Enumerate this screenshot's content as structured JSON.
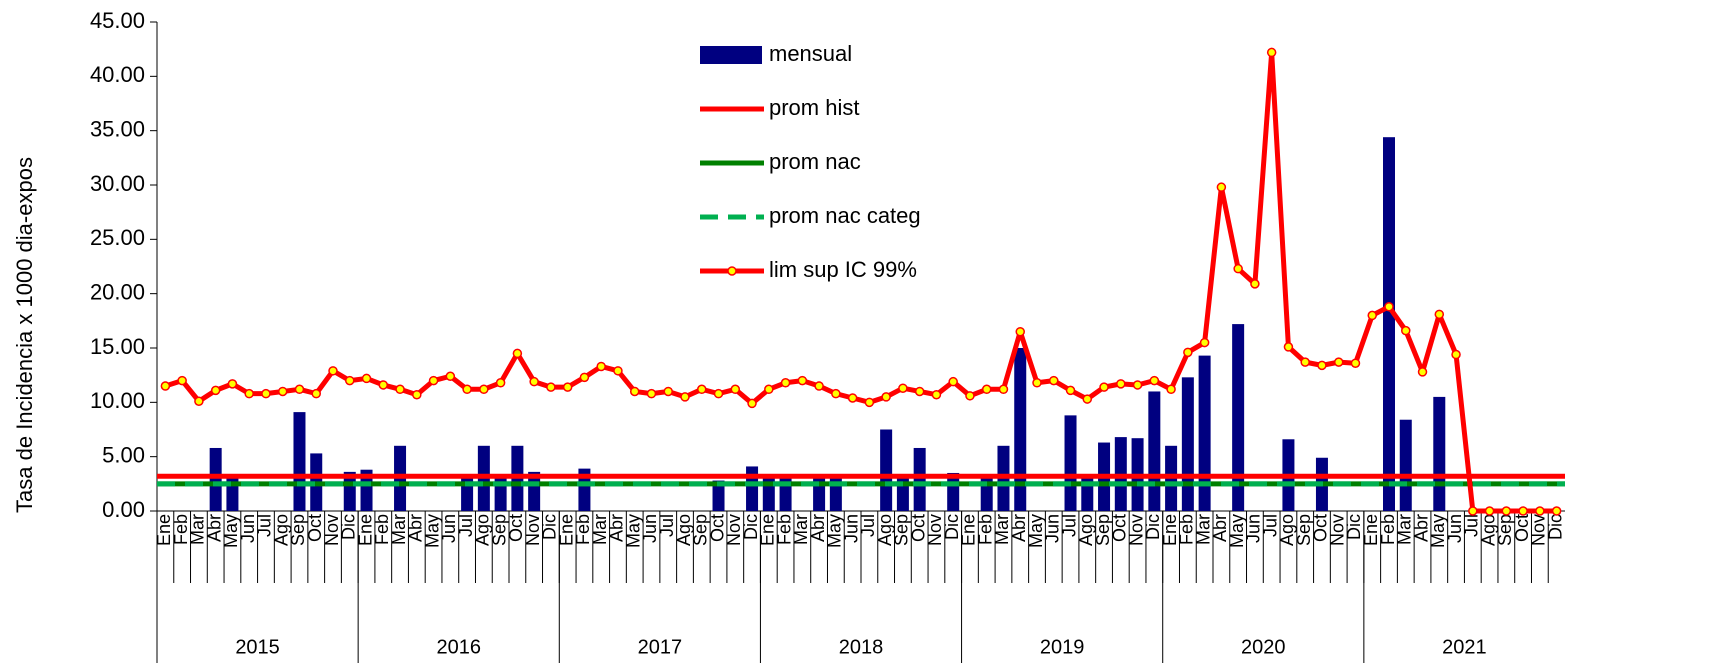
{
  "chart_data": {
    "type": "bar-line",
    "y_label": "Tasa de Incidencia x 1000 dia-expos",
    "categories": [
      "Ene",
      "Feb",
      "Mar",
      "Abr",
      "May",
      "Jun",
      "Jul",
      "Ago",
      "Sep",
      "Oct",
      "Nov",
      "Dic",
      "Ene",
      "Feb",
      "Mar",
      "Abr",
      "May",
      "Jun",
      "Jul",
      "Ago",
      "Sep",
      "Oct",
      "Nov",
      "Dic",
      "Ene",
      "Feb",
      "Mar",
      "Abr",
      "May",
      "Jun",
      "Jul",
      "Ago",
      "Sep",
      "Oct",
      "Nov",
      "Dic",
      "Ene",
      "Feb",
      "Mar",
      "Abr",
      "May",
      "Jun",
      "Jul",
      "Ago",
      "Sep",
      "Oct",
      "Nov",
      "Dic",
      "Ene",
      "Feb",
      "Mar",
      "Abr",
      "May",
      "Jun",
      "Jul",
      "Ago",
      "Sep",
      "Oct",
      "Nov",
      "Dic",
      "Ene",
      "Feb",
      "Mar",
      "Abr",
      "May",
      "Jun",
      "Jul",
      "Ago",
      "Sep",
      "Oct",
      "Nov",
      "Dic",
      "Ene",
      "Feb",
      "Mar",
      "Abr",
      "May",
      "Jun",
      "Jul",
      "Ago",
      "Sep",
      "Oct",
      "Nov",
      "Dic"
    ],
    "years": [
      "2015",
      "2016",
      "2017",
      "2018",
      "2019",
      "2020",
      "2021"
    ],
    "ylim": [
      0,
      45
    ],
    "yticks": [
      {
        "value": 0,
        "label": "0.00"
      },
      {
        "value": 5,
        "label": "5.00"
      },
      {
        "value": 10,
        "label": "10.00"
      },
      {
        "value": 15,
        "label": "15.00"
      },
      {
        "value": 20,
        "label": "20.00"
      },
      {
        "value": 25,
        "label": "25.00"
      },
      {
        "value": 30,
        "label": "30.00"
      },
      {
        "value": 35,
        "label": "35.00"
      },
      {
        "value": 40,
        "label": "40.00"
      },
      {
        "value": 45,
        "label": "45.00"
      }
    ],
    "series": [
      {
        "name": "mensual",
        "kind": "bar",
        "color": "#000080",
        "values": [
          0,
          0,
          0,
          5.8,
          3.0,
          0,
          0,
          0,
          9.1,
          5.3,
          0,
          3.6,
          3.8,
          0,
          6.0,
          0,
          0,
          0,
          3.0,
          6.0,
          3.3,
          6.0,
          3.6,
          0,
          0,
          3.9,
          0,
          0,
          0,
          0,
          0,
          0,
          0,
          2.8,
          0,
          4.1,
          3.0,
          3.3,
          0,
          3.0,
          3.0,
          0,
          0,
          7.5,
          3.0,
          5.8,
          0,
          3.5,
          0,
          3.0,
          6.0,
          15.0,
          0,
          0,
          8.8,
          3.0,
          6.3,
          6.8,
          6.7,
          11.0,
          6.0,
          12.3,
          14.3,
          0,
          17.2,
          0,
          0,
          6.6,
          0,
          4.9,
          0,
          0,
          0,
          34.4,
          8.4,
          0,
          10.5,
          0,
          0,
          0,
          0,
          0,
          0,
          0
        ]
      },
      {
        "name": "prom hist",
        "kind": "hline",
        "color": "#ff0000",
        "value": 3.2
      },
      {
        "name": "prom nac",
        "kind": "hline",
        "color": "#008000",
        "value": 2.5
      },
      {
        "name": "prom nac categ",
        "kind": "hline",
        "color": "#00b050",
        "dashed": true,
        "value": 2.5
      },
      {
        "name": "lim sup IC 99%",
        "kind": "line",
        "color": "#ff0000",
        "marker_color": "#ffff00",
        "values": [
          11.5,
          12.0,
          10.1,
          11.1,
          11.7,
          10.8,
          10.8,
          11.0,
          11.2,
          10.8,
          12.9,
          12.0,
          12.2,
          11.6,
          11.2,
          10.7,
          12.0,
          12.4,
          11.2,
          11.2,
          11.8,
          14.5,
          11.9,
          11.4,
          11.4,
          12.3,
          13.3,
          12.9,
          11.0,
          10.8,
          11.0,
          10.5,
          11.2,
          10.8,
          11.2,
          9.9,
          11.2,
          11.8,
          12.0,
          11.5,
          10.8,
          10.4,
          10.0,
          10.5,
          11.3,
          11.0,
          10.7,
          11.9,
          10.6,
          11.2,
          11.2,
          16.5,
          11.8,
          12.0,
          11.1,
          10.3,
          11.4,
          11.7,
          11.6,
          12.0,
          11.2,
          14.6,
          15.5,
          29.8,
          22.3,
          20.9,
          42.2,
          15.1,
          13.7,
          13.4,
          13.7,
          13.6,
          18.0,
          18.8,
          16.6,
          12.8,
          18.1,
          14.4,
          0,
          0,
          0,
          0,
          0,
          0
        ]
      }
    ]
  }
}
